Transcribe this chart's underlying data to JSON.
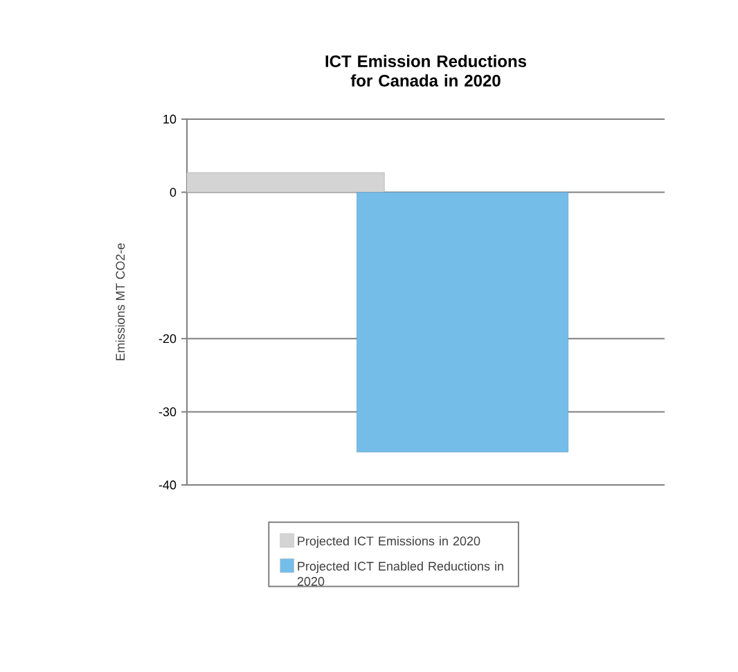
{
  "chart_data": {
    "type": "bar",
    "title": "ICT Emission Reductions for Canada in 2020",
    "ylabel": "Emissions MT CO2-e",
    "categories": [
      null,
      null
    ],
    "series": [
      {
        "name": "Projected ICT Emissions in 2020",
        "color": "#d4d4d4",
        "values": [
          2.7,
          null
        ]
      },
      {
        "name": "Projected ICT Enabled Reductions in 2020",
        "color": "#74bde9",
        "values": [
          null,
          -35.5
        ]
      }
    ],
    "ylim": [
      -40,
      10
    ],
    "yticks": [
      10,
      0,
      -20,
      -30,
      -40
    ],
    "grid": "y",
    "legend": "bottom",
    "tick_labels": "y"
  }
}
